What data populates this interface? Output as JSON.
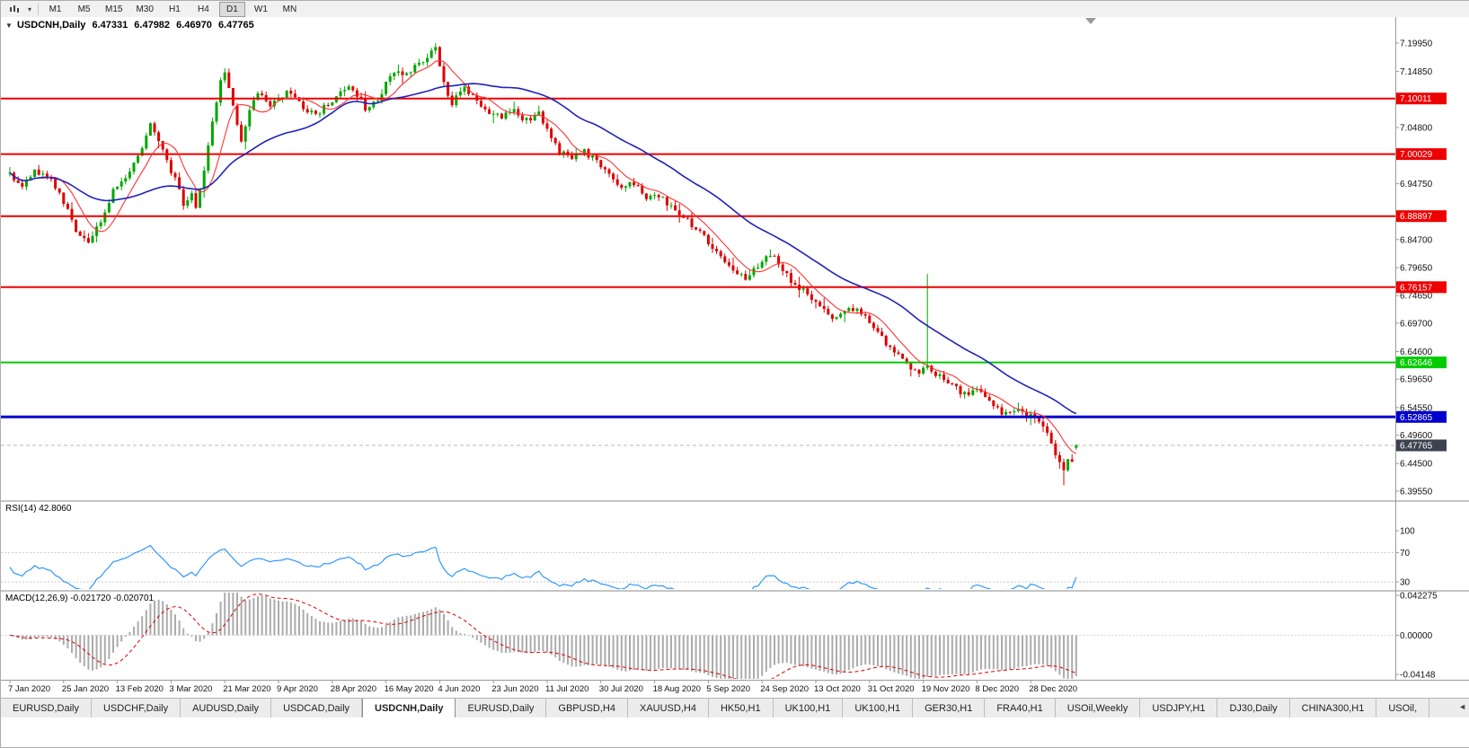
{
  "toolbar": {
    "timeframes": [
      {
        "label": "M1",
        "active": false
      },
      {
        "label": "M5",
        "active": false
      },
      {
        "label": "M15",
        "active": false
      },
      {
        "label": "M30",
        "active": false
      },
      {
        "label": "H1",
        "active": false
      },
      {
        "label": "H4",
        "active": false
      },
      {
        "label": "D1",
        "active": true
      },
      {
        "label": "W1",
        "active": false
      },
      {
        "label": "MN",
        "active": false
      }
    ]
  },
  "chart_header": {
    "collapse_arrow": "▼",
    "title": "USDCNH,Daily",
    "open": "6.47331",
    "high": "6.47982",
    "low": "6.46970",
    "close": "6.47765"
  },
  "rsi_header": "RSI(14) 42.8060",
  "macd_header": "MACD(12,26,9) -0.021720 -0.020701",
  "chart_data": {
    "type": "candlestick",
    "symbol": "USDCNH",
    "timeframe": "Daily",
    "last_ohlc": {
      "open": 6.47331,
      "high": 6.47982,
      "low": 6.4697,
      "close": 6.47765
    },
    "price_range_visible": [
      6.3955,
      7.1995
    ],
    "candles_per_label": 13,
    "x_labels": [
      "7 Jan 2020",
      "25 Jan 2020",
      "13 Feb 2020",
      "3 Mar 2020",
      "21 Mar 2020",
      "9 Apr 2020",
      "28 Apr 2020",
      "16 May 2020",
      "4 Jun 2020",
      "23 Jun 2020",
      "11 Jul 2020",
      "30 Jul 2020",
      "18 Aug 2020",
      "5 Sep 2020",
      "24 Sep 2020",
      "13 Oct 2020",
      "31 Oct 2020",
      "19 Nov 2020",
      "8 Dec 2020",
      "28 Dec 2020"
    ],
    "price_axis": [
      {
        "label": "7.19950",
        "value": 7.1995
      },
      {
        "label": "7.14850",
        "value": 7.1485
      },
      {
        "label": "7.04800",
        "value": 7.048
      },
      {
        "label": "6.94750",
        "value": 6.9475
      },
      {
        "label": "6.84700",
        "value": 6.847
      },
      {
        "label": "6.79650",
        "value": 6.7965
      },
      {
        "label": "6.74650",
        "value": 6.7465
      },
      {
        "label": "6.69700",
        "value": 6.697
      },
      {
        "label": "6.64600",
        "value": 6.646
      },
      {
        "label": "6.59650",
        "value": 6.5965
      },
      {
        "label": "6.54550",
        "value": 6.5455
      },
      {
        "label": "6.49600",
        "value": 6.496
      },
      {
        "label": "6.44500",
        "value": 6.445
      },
      {
        "label": "6.39550",
        "value": 6.3955
      }
    ],
    "levels": [
      {
        "label": "7.10011",
        "value": 7.10011,
        "color": "#ee0000",
        "width": 2
      },
      {
        "label": "7.00029",
        "value": 7.00029,
        "color": "#ee0000",
        "width": 2
      },
      {
        "label": "6.88897",
        "value": 6.88897,
        "color": "#ee0000",
        "width": 2
      },
      {
        "label": "6.76157",
        "value": 6.76157,
        "color": "#ee0000",
        "width": 2
      },
      {
        "label": "6.62646",
        "value": 6.62646,
        "color": "#00cc00",
        "width": 2
      },
      {
        "label": "6.52865",
        "value": 6.52865,
        "color": "#0000cc",
        "width": 3
      }
    ],
    "current_price": {
      "label": "6.47765",
      "value": 6.47765,
      "badge_color": "#3c4250"
    },
    "candles": {
      "count": 259,
      "up_color": "#00a600",
      "down_color": "#dd0000",
      "close_path": [
        [
          0,
          6.962
        ],
        [
          3,
          6.938
        ],
        [
          6,
          6.972
        ],
        [
          10,
          6.952
        ],
        [
          13,
          6.916
        ],
        [
          16,
          6.862
        ],
        [
          19,
          6.845
        ],
        [
          22,
          6.878
        ],
        [
          25,
          6.938
        ],
        [
          28,
          6.962
        ],
        [
          31,
          6.996
        ],
        [
          34,
          7.052
        ],
        [
          36,
          7.028
        ],
        [
          38,
          6.986
        ],
        [
          40,
          6.956
        ],
        [
          42,
          6.908
        ],
        [
          44,
          6.932
        ],
        [
          45,
          6.902
        ],
        [
          47,
          6.968
        ],
        [
          49,
          7.062
        ],
        [
          51,
          7.132
        ],
        [
          52,
          7.148
        ],
        [
          53,
          7.118
        ],
        [
          55,
          7.058
        ],
        [
          56,
          7.022
        ],
        [
          58,
          7.082
        ],
        [
          60,
          7.108
        ],
        [
          63,
          7.088
        ],
        [
          65,
          7.1
        ],
        [
          68,
          7.114
        ],
        [
          71,
          7.086
        ],
        [
          74,
          7.068
        ],
        [
          77,
          7.092
        ],
        [
          80,
          7.112
        ],
        [
          83,
          7.12
        ],
        [
          86,
          7.082
        ],
        [
          89,
          7.098
        ],
        [
          91,
          7.128
        ],
        [
          93,
          7.15
        ],
        [
          95,
          7.138
        ],
        [
          98,
          7.158
        ],
        [
          101,
          7.176
        ],
        [
          103,
          7.19
        ],
        [
          105,
          7.128
        ],
        [
          107,
          7.092
        ],
        [
          110,
          7.118
        ],
        [
          113,
          7.098
        ],
        [
          116,
          7.076
        ],
        [
          119,
          7.068
        ],
        [
          122,
          7.076
        ],
        [
          125,
          7.062
        ],
        [
          128,
          7.072
        ],
        [
          130,
          7.046
        ],
        [
          133,
          7.004
        ],
        [
          136,
          6.992
        ],
        [
          139,
          7.006
        ],
        [
          142,
          6.986
        ],
        [
          145,
          6.962
        ],
        [
          148,
          6.94
        ],
        [
          151,
          6.948
        ],
        [
          154,
          6.922
        ],
        [
          157,
          6.928
        ],
        [
          160,
          6.906
        ],
        [
          163,
          6.886
        ],
        [
          166,
          6.868
        ],
        [
          169,
          6.842
        ],
        [
          172,
          6.82
        ],
        [
          175,
          6.794
        ],
        [
          178,
          6.776
        ],
        [
          181,
          6.798
        ],
        [
          184,
          6.822
        ],
        [
          187,
          6.792
        ],
        [
          190,
          6.766
        ],
        [
          193,
          6.748
        ],
        [
          196,
          6.724
        ],
        [
          199,
          6.704
        ],
        [
          202,
          6.716
        ],
        [
          205,
          6.726
        ],
        [
          208,
          6.696
        ],
        [
          211,
          6.67
        ],
        [
          214,
          6.646
        ],
        [
          217,
          6.62
        ],
        [
          220,
          6.604
        ],
        [
          222,
          6.624
        ],
        [
          224,
          6.602
        ],
        [
          226,
          6.6
        ],
        [
          229,
          6.58
        ],
        [
          232,
          6.564
        ],
        [
          234,
          6.58
        ],
        [
          237,
          6.558
        ],
        [
          240,
          6.534
        ],
        [
          243,
          6.544
        ],
        [
          246,
          6.528
        ],
        [
          248,
          6.534
        ],
        [
          250,
          6.51
        ],
        [
          252,
          6.48
        ],
        [
          254,
          6.444
        ],
        [
          255,
          6.43
        ],
        [
          256,
          6.452
        ],
        [
          257,
          6.448
        ],
        [
          258,
          6.4777
        ]
      ],
      "overrides": {
        "103": {
          "h": 7.1993
        },
        "222": {
          "h": 6.785
        },
        "255": {
          "l": 6.406
        },
        "258": {
          "o": 6.47331,
          "h": 6.47982,
          "l": 6.4697,
          "c": 6.47765
        }
      }
    },
    "moving_averages": [
      {
        "period": 8,
        "color": "#ff3333",
        "width": 1.1
      },
      {
        "period": 34,
        "color": "#2222bb",
        "width": 1.6
      }
    ],
    "rsi": {
      "period": 14,
      "current": 42.806,
      "color": "#1e90ff",
      "level_lines": [
        70,
        30
      ],
      "axis": [
        {
          "label": "100",
          "value": 100
        },
        {
          "label": "70",
          "value": 70
        },
        {
          "label": "30",
          "value": 30
        }
      ]
    },
    "macd": {
      "fast": 12,
      "slow": 26,
      "signal_period": 9,
      "current_main": -0.02172,
      "current_signal": -0.020701,
      "histogram_color": "#ababab",
      "signal_color": "#e00000",
      "axis": [
        {
          "label": "0.042275",
          "value": 0.042275
        },
        {
          "label": "0.00000",
          "value": 0
        },
        {
          "label": "-0.04148",
          "value": -0.04148
        }
      ]
    }
  },
  "tabs": {
    "scroll_left": "◄",
    "items": [
      {
        "label": "EURUSD,Daily",
        "active": false
      },
      {
        "label": "USDCHF,Daily",
        "active": false
      },
      {
        "label": "AUDUSD,Daily",
        "active": false
      },
      {
        "label": "USDCAD,Daily",
        "active": false
      },
      {
        "label": "USDCNH,Daily",
        "active": true
      },
      {
        "label": "EURUSD,Daily",
        "active": false
      },
      {
        "label": "GBPUSD,H4",
        "active": false
      },
      {
        "label": "XAUUSD,H4",
        "active": false
      },
      {
        "label": "HK50,H1",
        "active": false
      },
      {
        "label": "UK100,H1",
        "active": false
      },
      {
        "label": "UK100,H1",
        "active": false
      },
      {
        "label": "GER30,H1",
        "active": false
      },
      {
        "label": "FRA40,H1",
        "active": false
      },
      {
        "label": "USOil,Weekly",
        "active": false
      },
      {
        "label": "USDJPY,H1",
        "active": false
      },
      {
        "label": "DJ30,Daily",
        "active": false
      },
      {
        "label": "CHINA300,H1",
        "active": false
      },
      {
        "label": "USOil,",
        "active": false
      }
    ]
  }
}
